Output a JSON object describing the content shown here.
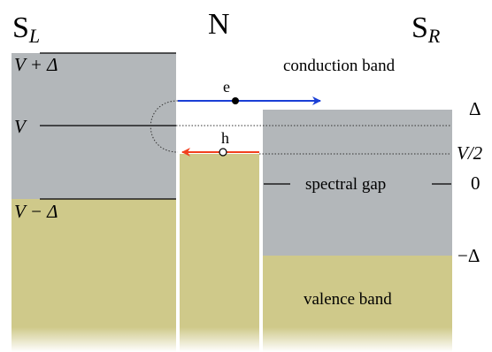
{
  "regions": {
    "left": {
      "main": "S",
      "sub": "L"
    },
    "middle": "N",
    "right": {
      "main": "S",
      "sub": "R"
    }
  },
  "levels_left": {
    "top": "V + Δ",
    "mid": "V",
    "bottom": "V − Δ"
  },
  "levels_right": {
    "delta": "Δ",
    "half_v": "V/2",
    "zero": "0",
    "neg_delta": "−Δ"
  },
  "particles": {
    "electron": "e",
    "hole": "h"
  },
  "band_labels": {
    "conduction": "conduction band",
    "gap": "spectral gap",
    "valence": "valence band"
  },
  "colors": {
    "gap_gray": "#b3b7ba",
    "filled_olive": "#cfc98a",
    "electron_arrow": "#1a3fd6",
    "hole_arrow": "#f2401e"
  }
}
